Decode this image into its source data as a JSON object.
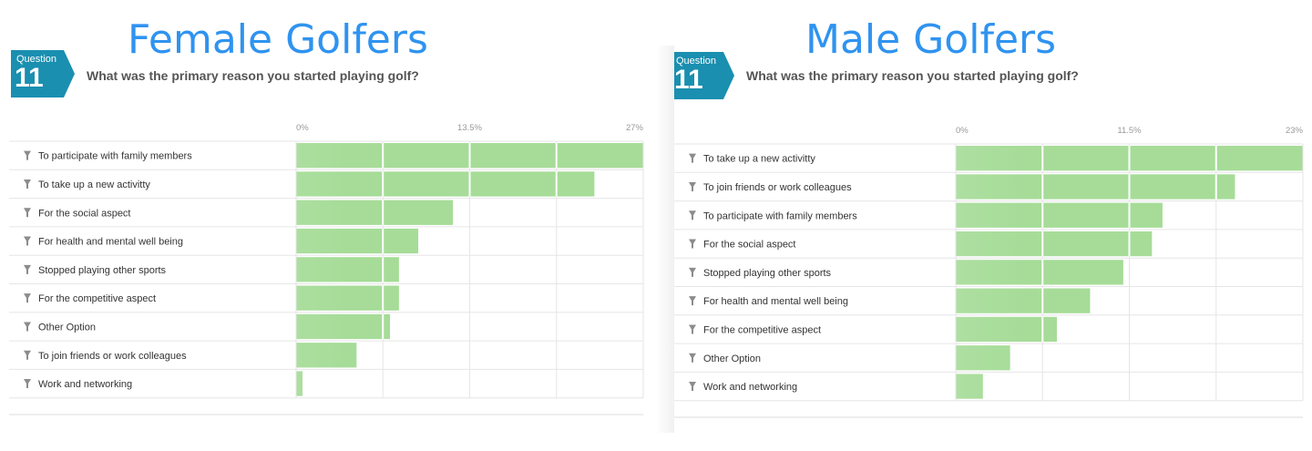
{
  "panels": [
    {
      "title": "Female Golfers",
      "question_label": "Question",
      "question_number": "11",
      "question_text": "What was the primary reason you started playing golf?"
    },
    {
      "title": "Male Golfers",
      "question_label": "Question",
      "question_number": "11",
      "question_text": "What was the primary reason you started playing golf?"
    }
  ],
  "colors": {
    "title": "#2f93f0",
    "badge": "#1a8fb0",
    "bar_light": "#cfeccb",
    "bar_dark": "#a6dc98",
    "grid": "#e6e6e6",
    "filter_icon": "#8c8c8c"
  },
  "chart_data": [
    {
      "type": "bar",
      "orientation": "horizontal",
      "tick_labels": [
        "0%",
        "13.5%",
        "27%"
      ],
      "xlim": [
        0,
        27
      ],
      "grid": true,
      "categories": [
        "To participate with family members",
        "To take up a new activitty",
        "For the social aspect",
        "For health and mental well being",
        "Stopped playing other sports",
        "For the competitive aspect",
        "Other Option",
        "To join friends or work colleagues",
        "Work and networking"
      ],
      "values": [
        27,
        23.2,
        12.2,
        9.5,
        8,
        8,
        7.3,
        4.7,
        0.5
      ]
    },
    {
      "type": "bar",
      "orientation": "horizontal",
      "tick_labels": [
        "0%",
        "11.5%",
        "23%"
      ],
      "xlim": [
        0,
        23
      ],
      "grid": true,
      "categories": [
        "To take up a new activitty",
        "To join friends or work colleagues",
        "To participate with family members",
        "For the social aspect",
        "Stopped playing other sports",
        "For health and mental well being",
        "For the competitive aspect",
        "Other Option",
        "Work and networking"
      ],
      "values": [
        23,
        18.5,
        13.7,
        13,
        11.1,
        8.9,
        6.7,
        3.6,
        1.8
      ]
    }
  ]
}
